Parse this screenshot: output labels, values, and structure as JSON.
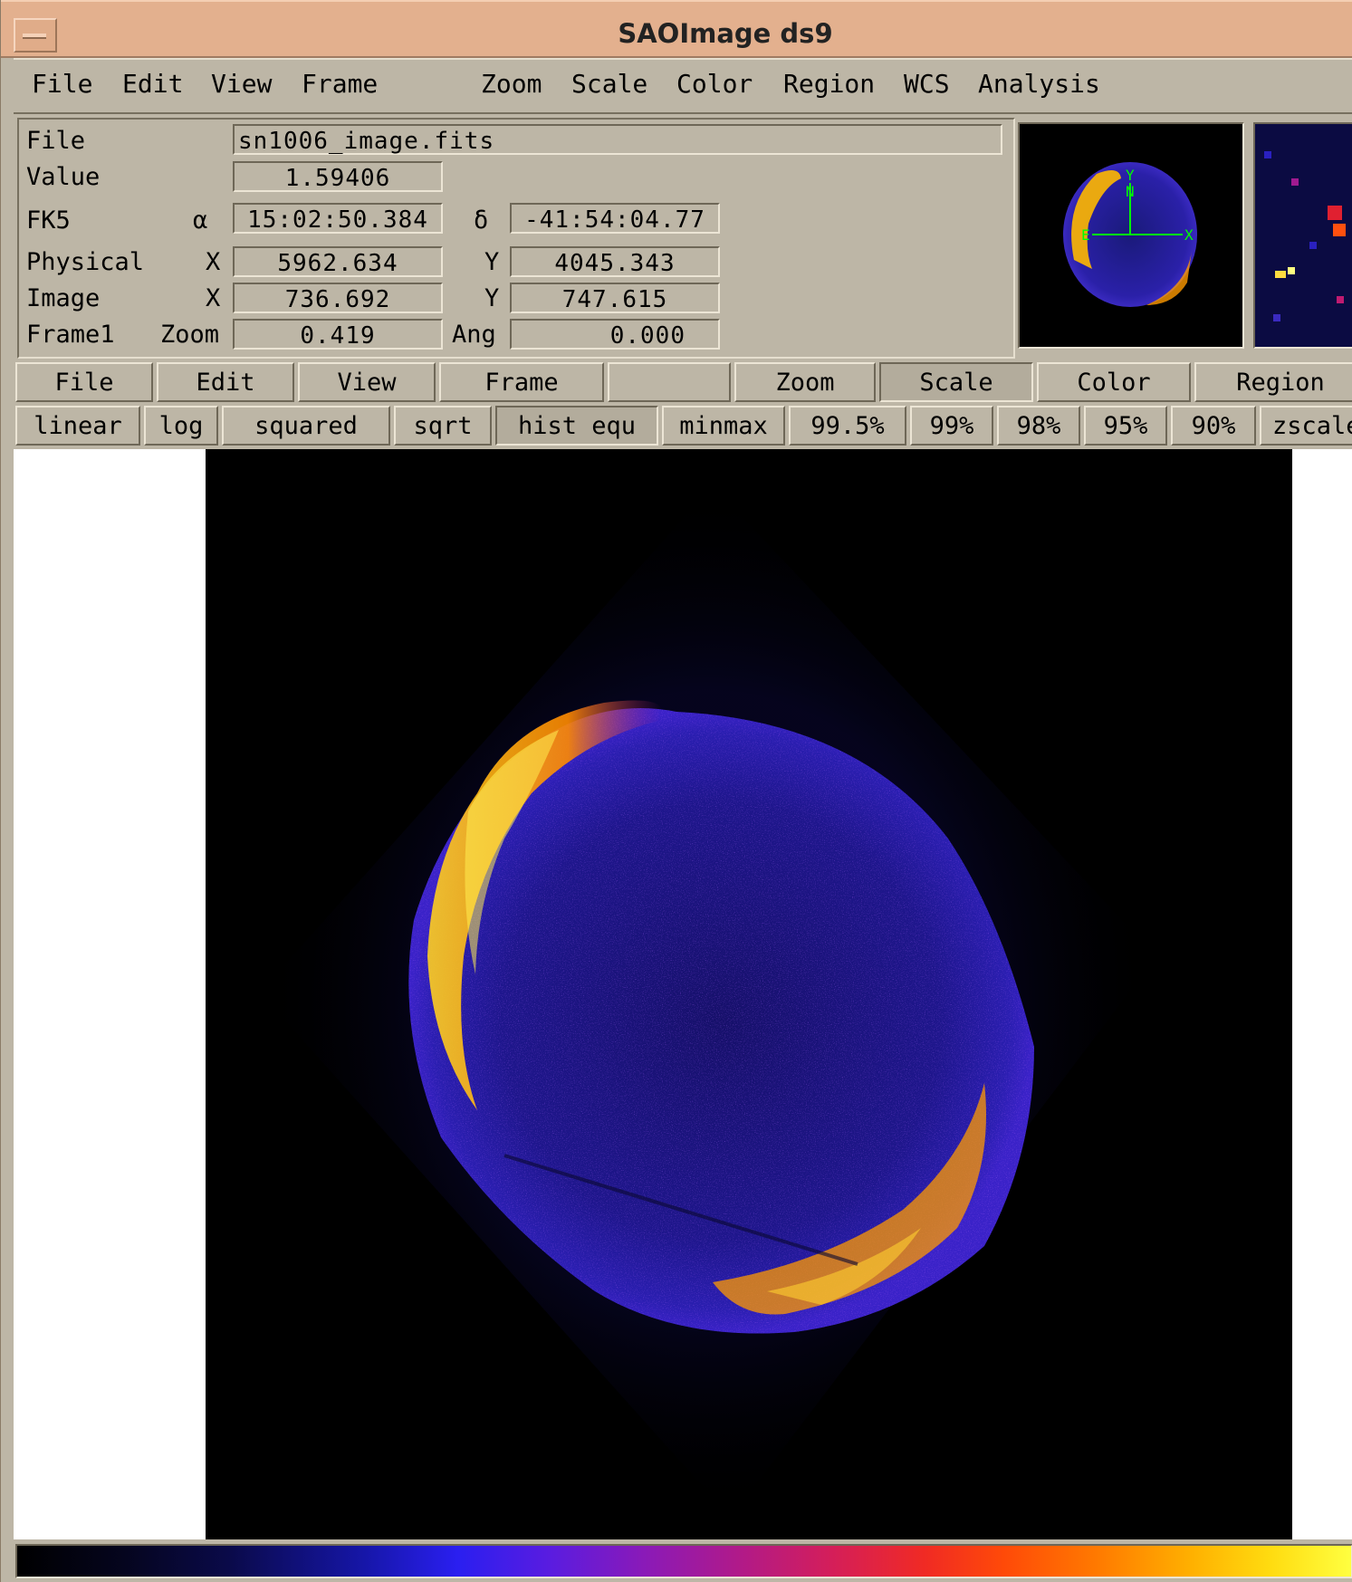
{
  "window": {
    "title": "SAOImage ds9"
  },
  "menubar": {
    "items": [
      "File",
      "Edit",
      "View",
      "Frame",
      "Zoom",
      "Scale",
      "Color",
      "Region",
      "WCS",
      "Analysis"
    ]
  },
  "info": {
    "file_label": "File",
    "file_value": "sn1006_image.fits",
    "value_label": "Value",
    "value_value": "1.59406",
    "fk5_label": "FK5",
    "alpha_symbol": "α",
    "alpha_value": "15:02:50.384",
    "delta_symbol": "δ",
    "delta_value": "-41:54:04.77",
    "physical_label": "Physical",
    "physical_x_label": "X",
    "physical_x_value": "5962.634",
    "physical_y_label": "Y",
    "physical_y_value": "4045.343",
    "image_label": "Image",
    "image_x_label": "X",
    "image_x_value": "736.692",
    "image_y_label": "Y",
    "image_y_value": "747.615",
    "frame_label": "Frame1",
    "zoom_label": "Zoom",
    "zoom_value": "0.419",
    "ang_label": "Ang",
    "ang_value": "0.000"
  },
  "panner": {
    "compass_n": "N",
    "compass_e": "E",
    "axis_x": "X",
    "axis_y": "Y"
  },
  "buttonbar": {
    "items": [
      "File",
      "Edit",
      "View",
      "Frame",
      "",
      "Zoom",
      "Scale",
      "Color",
      "Region"
    ],
    "active": "Scale"
  },
  "scalebar": {
    "items": [
      "linear",
      "log",
      "squared",
      "sqrt",
      "hist equ",
      "minmax",
      "99.5%",
      "99%",
      "98%",
      "95%",
      "90%",
      "zscale"
    ],
    "active": "hist equ"
  },
  "colors": {
    "titlebar": "#e3b08e",
    "panel": "#bdb6a6",
    "compass": "#00ff00"
  }
}
